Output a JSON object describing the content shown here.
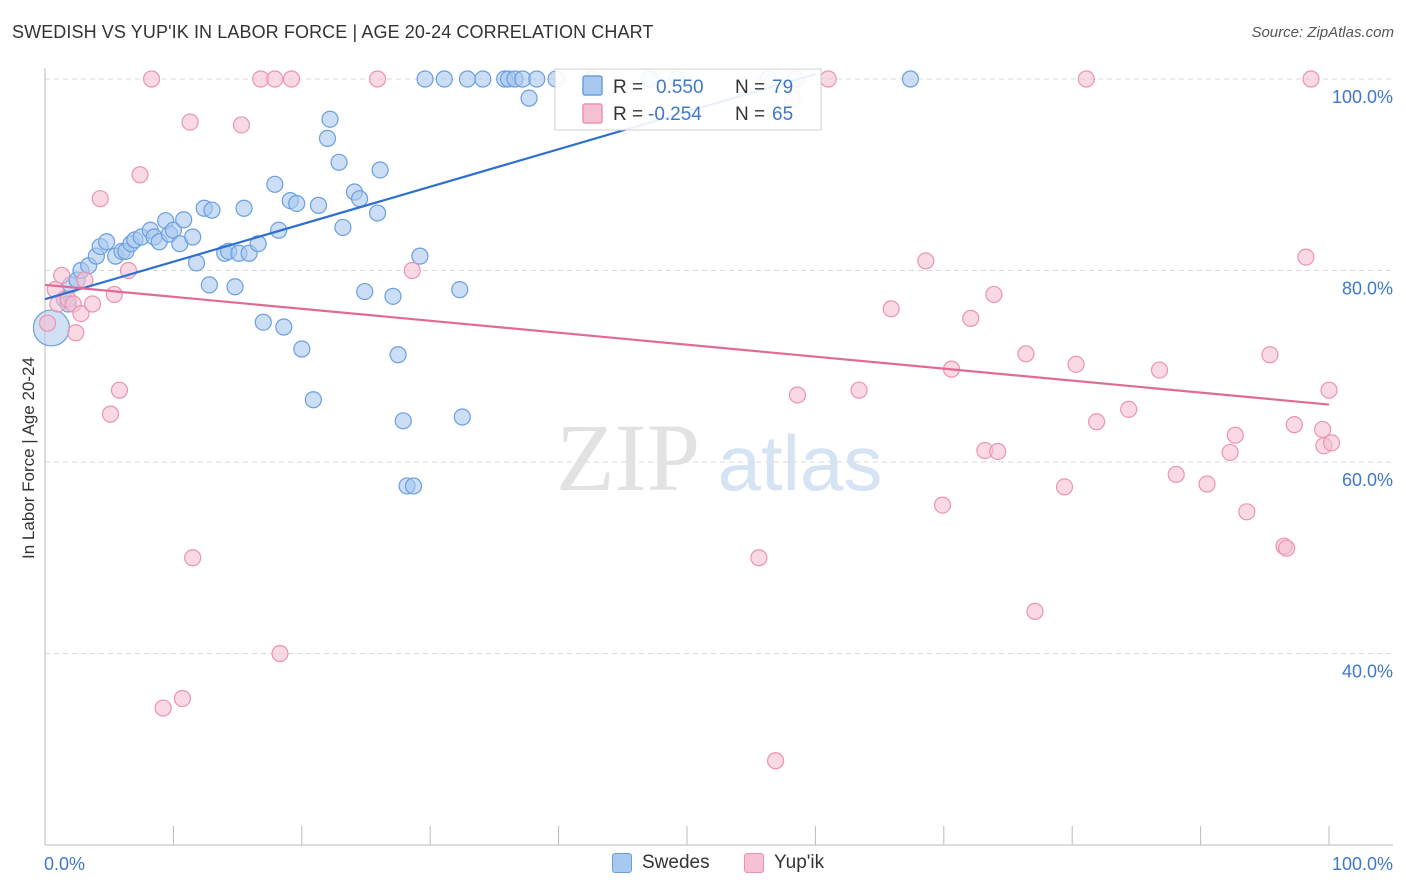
{
  "title": "SWEDISH VS YUP'IK IN LABOR FORCE | AGE 20-24 CORRELATION CHART",
  "source": "Source: ZipAtlas.com",
  "watermark": {
    "zip": "ZIP",
    "atlas": "atlas"
  },
  "colors": {
    "swedes_fill": "#a9c8ef",
    "swedes_stroke": "#6a9fe0",
    "swedes_line": "#2f6fd0",
    "yupik_fill": "#f5c0d2",
    "yupik_stroke": "#ec93b2",
    "yupik_line": "#e06b96",
    "axis_label": "#3f78c9",
    "grid": "#d9d9d9"
  },
  "legend": {
    "r_label": "R =",
    "n_label": "N =",
    "swedes_r": "0.550",
    "swedes_n": "79",
    "yupik_r": "-0.254",
    "yupik_n": "65"
  },
  "chart_data": {
    "type": "scatter",
    "title": "SWEDISH VS YUP'IK IN LABOR FORCE | AGE 20-24 CORRELATION CHART",
    "xlabel": "",
    "ylabel": "In Labor Force | Age 20-24",
    "xlim": [
      0,
      100
    ],
    "ylim": [
      20,
      101
    ],
    "x_tick_labels": [
      "0.0%",
      "100.0%"
    ],
    "y_ticks": [
      {
        "value": 100,
        "label": "100.0%"
      },
      {
        "value": 80,
        "label": "80.0%"
      },
      {
        "value": 60,
        "label": "60.0%"
      },
      {
        "value": 40,
        "label": "40.0%"
      }
    ],
    "grid": true,
    "legend_position": "top-center",
    "series": [
      {
        "name": "Swedes",
        "r": 0.55,
        "n": 79,
        "trend": {
          "x": [
            0,
            60
          ],
          "y": [
            77.0,
            100.5
          ]
        },
        "points": [
          [
            0.5,
            74
          ],
          [
            1.5,
            77
          ],
          [
            1.8,
            76.5
          ],
          [
            2,
            78.5
          ],
          [
            2.5,
            79
          ],
          [
            2.8,
            80
          ],
          [
            3.4,
            80.5
          ],
          [
            4,
            81.5
          ],
          [
            4.3,
            82.5
          ],
          [
            4.8,
            83
          ],
          [
            5.5,
            81.5
          ],
          [
            6,
            82
          ],
          [
            6.3,
            82
          ],
          [
            6.7,
            82.8
          ],
          [
            7,
            83.2
          ],
          [
            7.5,
            83.5
          ],
          [
            8.2,
            84.2
          ],
          [
            8.5,
            83.5
          ],
          [
            8.9,
            83
          ],
          [
            9.4,
            85.2
          ],
          [
            9.7,
            83.8
          ],
          [
            10,
            84.2
          ],
          [
            10.5,
            82.8
          ],
          [
            10.8,
            85.3
          ],
          [
            11.5,
            83.5
          ],
          [
            11.8,
            80.8
          ],
          [
            12.4,
            86.5
          ],
          [
            12.8,
            78.5
          ],
          [
            13,
            86.3
          ],
          [
            14,
            81.8
          ],
          [
            14.3,
            82
          ],
          [
            14.8,
            78.3
          ],
          [
            15.1,
            81.8
          ],
          [
            15.5,
            86.5
          ],
          [
            15.9,
            81.8
          ],
          [
            16.6,
            82.8
          ],
          [
            17,
            74.6
          ],
          [
            17.9,
            89
          ],
          [
            18.2,
            84.2
          ],
          [
            18.6,
            74.1
          ],
          [
            19.1,
            87.3
          ],
          [
            19.6,
            87
          ],
          [
            20,
            71.8
          ],
          [
            20.9,
            66.5
          ],
          [
            21.3,
            86.8
          ],
          [
            22,
            93.8
          ],
          [
            22.2,
            95.8
          ],
          [
            22.9,
            91.3
          ],
          [
            23.2,
            84.5
          ],
          [
            24.1,
            88.2
          ],
          [
            24.5,
            87.5
          ],
          [
            24.9,
            77.8
          ],
          [
            25.9,
            86
          ],
          [
            26.1,
            90.5
          ],
          [
            27.1,
            77.3
          ],
          [
            27.5,
            71.2
          ],
          [
            27.9,
            64.3
          ],
          [
            28.2,
            57.5
          ],
          [
            28.7,
            57.5
          ],
          [
            29.2,
            81.5
          ],
          [
            29.6,
            100
          ],
          [
            31.1,
            100
          ],
          [
            32.3,
            78
          ],
          [
            32.5,
            64.7
          ],
          [
            32.9,
            100
          ],
          [
            34.1,
            100
          ],
          [
            35.8,
            100
          ],
          [
            36.1,
            100
          ],
          [
            36.6,
            100
          ],
          [
            37.2,
            100
          ],
          [
            37.7,
            98
          ],
          [
            38.3,
            100
          ],
          [
            39.8,
            100
          ],
          [
            42.6,
            100
          ],
          [
            47.1,
            100
          ],
          [
            49.2,
            100
          ],
          [
            56.3,
            100
          ],
          [
            58.5,
            100
          ],
          [
            67.4,
            100
          ]
        ]
      },
      {
        "name": "Yup'ik",
        "r": -0.254,
        "n": 65,
        "trend": {
          "x": [
            0,
            100
          ],
          "y": [
            78.5,
            66.0
          ]
        },
        "points": [
          [
            0.2,
            74.5
          ],
          [
            0.8,
            78
          ],
          [
            1,
            76.5
          ],
          [
            1.3,
            79.5
          ],
          [
            1.8,
            77
          ],
          [
            2.2,
            76.5
          ],
          [
            2.4,
            73.5
          ],
          [
            2.8,
            75.5
          ],
          [
            3.1,
            79
          ],
          [
            3.7,
            76.5
          ],
          [
            4.3,
            87.5
          ],
          [
            5.1,
            65
          ],
          [
            5.4,
            77.5
          ],
          [
            5.8,
            67.5
          ],
          [
            6.5,
            80
          ],
          [
            7.4,
            90
          ],
          [
            8.3,
            100
          ],
          [
            9.2,
            34.3
          ],
          [
            10.7,
            35.3
          ],
          [
            11.3,
            95.5
          ],
          [
            11.5,
            50
          ],
          [
            15.3,
            95.2
          ],
          [
            16.8,
            100
          ],
          [
            17.9,
            100
          ],
          [
            18.3,
            40
          ],
          [
            19.2,
            100
          ],
          [
            25.9,
            100
          ],
          [
            28.6,
            80
          ],
          [
            55.6,
            50
          ],
          [
            56.9,
            28.8
          ],
          [
            58.2,
            98
          ],
          [
            58.6,
            67
          ],
          [
            61,
            100
          ],
          [
            63.4,
            67.5
          ],
          [
            65.9,
            76
          ],
          [
            68.6,
            81
          ],
          [
            69.9,
            55.5
          ],
          [
            70.6,
            69.7
          ],
          [
            72.1,
            75
          ],
          [
            73.2,
            61.2
          ],
          [
            73.9,
            77.5
          ],
          [
            74.2,
            61.1
          ],
          [
            76.4,
            71.3
          ],
          [
            77.1,
            44.4
          ],
          [
            79.4,
            57.4
          ],
          [
            80.3,
            70.2
          ],
          [
            81.1,
            100
          ],
          [
            81.9,
            64.2
          ],
          [
            84.4,
            65.5
          ],
          [
            86.8,
            69.6
          ],
          [
            88.1,
            58.7
          ],
          [
            90.5,
            57.7
          ],
          [
            92.3,
            61
          ],
          [
            92.7,
            62.8
          ],
          [
            93.6,
            54.8
          ],
          [
            95.4,
            71.2
          ],
          [
            96.5,
            51.2
          ],
          [
            96.7,
            51
          ],
          [
            97.3,
            63.9
          ],
          [
            98.2,
            81.4
          ],
          [
            98.6,
            100
          ],
          [
            99.5,
            63.4
          ],
          [
            99.6,
            61.7
          ],
          [
            100,
            67.5
          ],
          [
            100.2,
            62
          ]
        ]
      }
    ]
  },
  "bottom_legend": [
    {
      "label": "Swedes"
    },
    {
      "label": "Yup'ik"
    }
  ]
}
